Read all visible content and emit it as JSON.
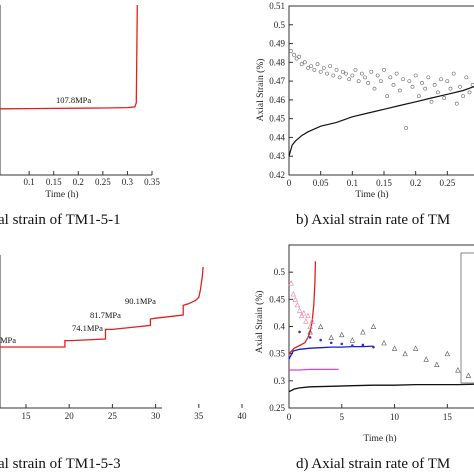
{
  "chart_data": [
    {
      "type": "line",
      "panel": "a",
      "caption": "al strain of TM1-5-1",
      "xlabel": "Time (h)",
      "xlim": [
        0,
        0.35
      ],
      "x_ticks": [
        "0.1",
        "0.15",
        "0.2",
        "0.25",
        "0.3",
        "0.35"
      ],
      "series": [
        {
          "color": "#e02020",
          "x": [
            0.0,
            0.05,
            0.1,
            0.15,
            0.2,
            0.25,
            0.3,
            0.315,
            0.318,
            0.32
          ],
          "y": [
            0.0,
            0.002,
            0.004,
            0.006,
            0.008,
            0.01,
            0.013,
            0.02,
            0.06,
            1.0
          ]
        }
      ],
      "annotations": [
        "107.8MPa"
      ]
    },
    {
      "type": "scatter",
      "panel": "b",
      "caption": "b) Axial strain rate of TM",
      "xlabel": "Time (h)",
      "ylabel": "Axial Strain (%)",
      "xlim": [
        0,
        0.3
      ],
      "ylim": [
        0.42,
        0.51
      ],
      "x_ticks": [
        "0",
        "0.05",
        "0.1",
        "0.15",
        "0.2",
        "0.25"
      ],
      "y_ticks": [
        "0.42",
        "0.43",
        "0.44",
        "0.45",
        "0.46",
        "0.47",
        "0.48",
        "0.49",
        "0.5",
        "0.51"
      ],
      "series": [
        {
          "marker": "circle",
          "x": [
            0.003,
            0.008,
            0.012,
            0.016,
            0.02,
            0.025,
            0.03,
            0.035,
            0.04,
            0.045,
            0.05,
            0.055,
            0.06,
            0.065,
            0.07,
            0.075,
            0.08,
            0.085,
            0.09,
            0.095,
            0.1,
            0.105,
            0.11,
            0.115,
            0.12,
            0.125,
            0.13,
            0.135,
            0.14,
            0.145,
            0.15,
            0.155,
            0.16,
            0.165,
            0.17,
            0.175,
            0.18,
            0.185,
            0.19,
            0.195,
            0.2,
            0.205,
            0.21,
            0.215,
            0.22,
            0.225,
            0.23,
            0.235,
            0.24,
            0.245,
            0.25,
            0.255,
            0.26,
            0.265,
            0.27,
            0.275,
            0.28,
            0.285,
            0.29,
            0.295
          ],
          "y": [
            0.486,
            0.484,
            0.482,
            0.483,
            0.479,
            0.48,
            0.477,
            0.478,
            0.476,
            0.479,
            0.475,
            0.477,
            0.474,
            0.478,
            0.473,
            0.476,
            0.472,
            0.475,
            0.474,
            0.471,
            0.473,
            0.476,
            0.47,
            0.474,
            0.472,
            0.469,
            0.475,
            0.466,
            0.473,
            0.47,
            0.476,
            0.462,
            0.472,
            0.468,
            0.474,
            0.465,
            0.471,
            0.445,
            0.47,
            0.467,
            0.473,
            0.462,
            0.469,
            0.466,
            0.472,
            0.459,
            0.468,
            0.464,
            0.471,
            0.461,
            0.47,
            0.466,
            0.474,
            0.458,
            0.467,
            0.462,
            0.472,
            0.464,
            0.468,
            0.47
          ]
        },
        {
          "marker": "line",
          "x": [
            0.0,
            0.005,
            0.01,
            0.02,
            0.03,
            0.05,
            0.075,
            0.1,
            0.125,
            0.15,
            0.175,
            0.2,
            0.225,
            0.25,
            0.275,
            0.3
          ],
          "y": [
            0.43,
            0.436,
            0.438,
            0.441,
            0.443,
            0.446,
            0.448,
            0.451,
            0.453,
            0.455,
            0.457,
            0.459,
            0.461,
            0.463,
            0.465,
            0.468
          ]
        }
      ]
    },
    {
      "type": "line",
      "panel": "c",
      "caption": "al strain of TM1-5-3",
      "xlabel": "",
      "xlim": [
        0,
        40
      ],
      "x_ticks": [
        "15",
        "20",
        "25",
        "30",
        "35",
        "40"
      ],
      "series": [
        {
          "color": "#e02020",
          "x": [
            8,
            19.5,
            19.5,
            20.2,
            24.2,
            24.2,
            25,
            29.4,
            29.4,
            30,
            33.2,
            33.2,
            33.8,
            34.6,
            35,
            35.2,
            35.4,
            35.5
          ],
          "y": [
            0,
            0,
            0.08,
            0.08,
            0.1,
            0.22,
            0.22,
            0.27,
            0.35,
            0.36,
            0.4,
            0.52,
            0.54,
            0.58,
            0.62,
            0.72,
            0.88,
            1.0
          ]
        }
      ],
      "annotations": [
        "MPa",
        "74.1MPa",
        "81.7MPa",
        "90.1MPa"
      ]
    },
    {
      "type": "scatter",
      "panel": "d",
      "caption": "d) Axial strain rate of TM",
      "xlabel": "Time (h)",
      "ylabel": "Axial Strain (%)",
      "xlim": [
        0,
        18
      ],
      "ylim": [
        0.25,
        0.55
      ],
      "x_ticks": [
        "0",
        "5",
        "10",
        "15"
      ],
      "y_ticks": [
        "0.25",
        "0.3",
        "0.35",
        "0.4",
        "0.45",
        "0.5"
      ],
      "series": [
        {
          "color": "#e02020",
          "marker": "line",
          "x": [
            0,
            0.5,
            1,
            1.5,
            1.8,
            2,
            2.2,
            2.35,
            2.45,
            2.5
          ],
          "y": [
            0.35,
            0.36,
            0.365,
            0.37,
            0.38,
            0.39,
            0.41,
            0.44,
            0.48,
            0.52
          ]
        },
        {
          "color": "#1a1acc",
          "marker": "line",
          "x": [
            0,
            0.4,
            1,
            2,
            3,
            4,
            5,
            6,
            7,
            8
          ],
          "y": [
            0.34,
            0.355,
            0.358,
            0.36,
            0.361,
            0.362,
            0.362,
            0.363,
            0.363,
            0.364
          ]
        },
        {
          "color": "#e040e0",
          "marker": "line",
          "x": [
            0,
            1,
            2,
            3,
            4,
            4.7
          ],
          "y": [
            0.32,
            0.32,
            0.321,
            0.321,
            0.321,
            0.321
          ]
        },
        {
          "color": "#111111",
          "marker": "line",
          "x": [
            0,
            0.5,
            1,
            2,
            4,
            6,
            8,
            10,
            12,
            14,
            16,
            18
          ],
          "y": [
            0.28,
            0.285,
            0.287,
            0.289,
            0.29,
            0.291,
            0.292,
            0.292,
            0.293,
            0.293,
            0.293,
            0.294
          ]
        },
        {
          "color": "#ee80a0",
          "marker": "triangle",
          "x": [
            0.2,
            0.4,
            0.6,
            0.8,
            1.0,
            1.2,
            1.4,
            1.6,
            1.8,
            2.0,
            2.2
          ],
          "y": [
            0.48,
            0.46,
            0.45,
            0.44,
            0.43,
            0.42,
            0.425,
            0.41,
            0.42,
            0.4,
            0.41
          ]
        },
        {
          "color": "#3030cc",
          "marker": "star",
          "x": [
            1,
            2,
            3,
            4,
            5,
            6,
            7,
            8
          ],
          "y": [
            0.39,
            0.38,
            0.375,
            0.37,
            0.368,
            0.365,
            0.366,
            0.362
          ]
        },
        {
          "color": "#555555",
          "marker": "triangle-open",
          "x": [
            2,
            3,
            4,
            5,
            6,
            7,
            8,
            9,
            10,
            11,
            12,
            13,
            14,
            15,
            16,
            17
          ],
          "y": [
            0.39,
            0.4,
            0.38,
            0.385,
            0.375,
            0.39,
            0.4,
            0.37,
            0.36,
            0.35,
            0.36,
            0.34,
            0.33,
            0.35,
            0.32,
            0.31
          ]
        }
      ]
    }
  ]
}
